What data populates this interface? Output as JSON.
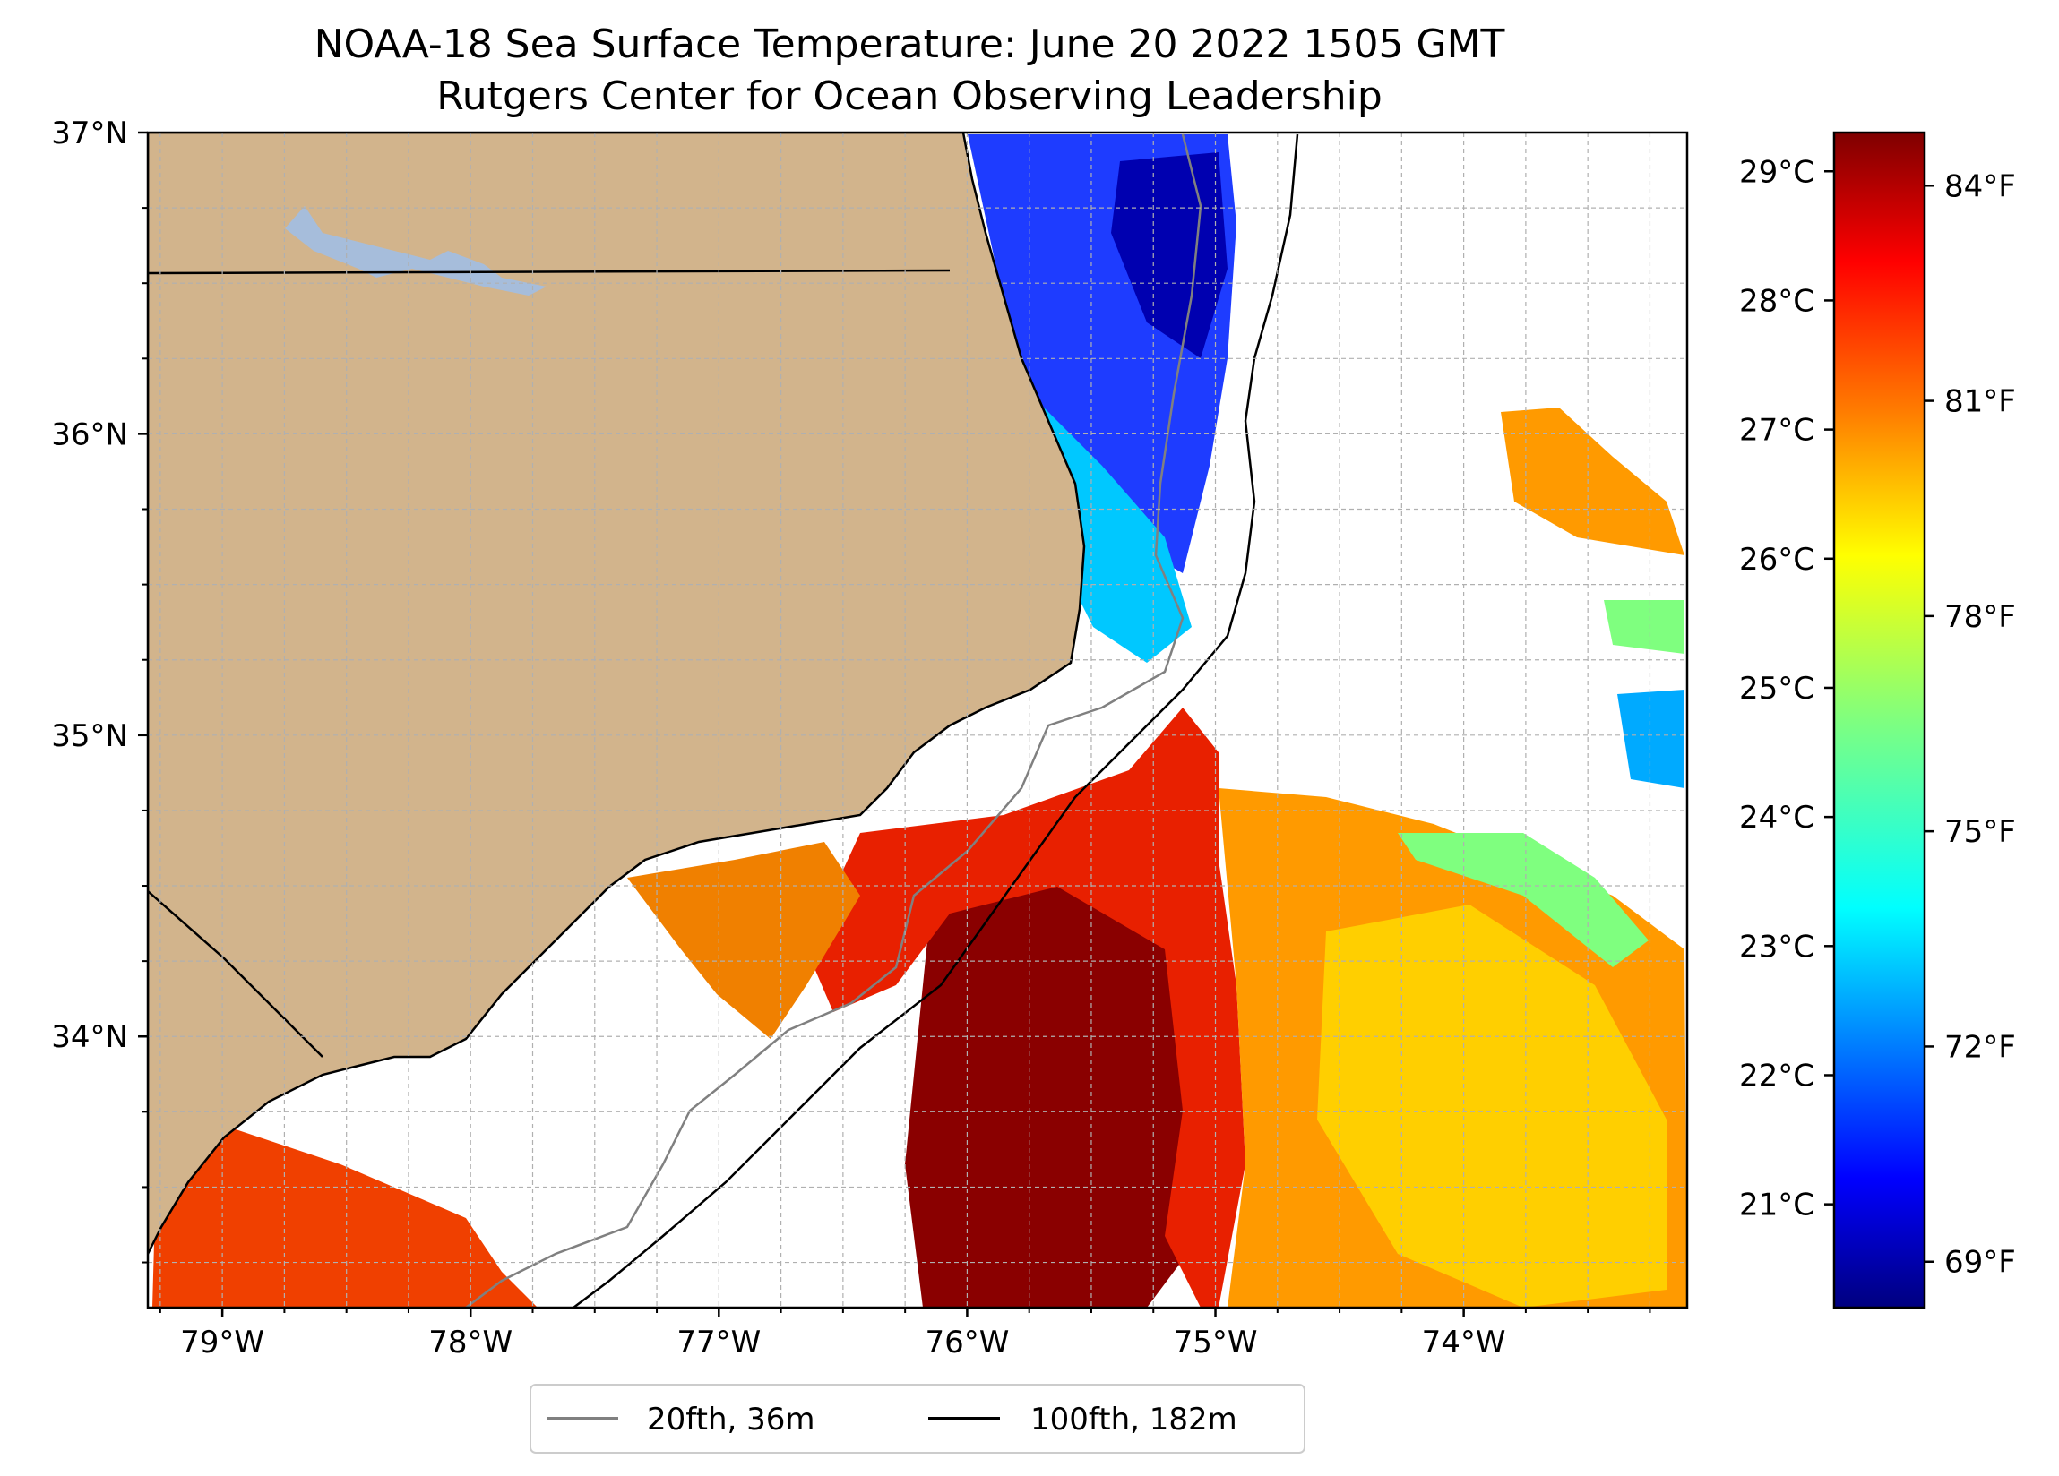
{
  "title": {
    "line1": "NOAA-18 Sea Surface Temperature: June 20 2022 1505 GMT",
    "line2": "Rutgers Center for Ocean Observing Leadership"
  },
  "map": {
    "lon_range": [
      -79.3,
      -73.1
    ],
    "lat_range": [
      33.1,
      37.0
    ],
    "lat_ticks": [
      {
        "value": 37,
        "label": "37°N"
      },
      {
        "value": 36,
        "label": "36°N"
      },
      {
        "value": 35,
        "label": "35°N"
      },
      {
        "value": 34,
        "label": "34°N"
      }
    ],
    "lon_ticks": [
      {
        "value": -79,
        "label": "79°W"
      },
      {
        "value": -78,
        "label": "78°W"
      },
      {
        "value": -77,
        "label": "77°W"
      },
      {
        "value": -76,
        "label": "76°W"
      },
      {
        "value": -75,
        "label": "75°W"
      },
      {
        "value": -74,
        "label": "74°W"
      }
    ],
    "grid": true,
    "land_color": "#d2b48c",
    "lake_color": "#a6bddb",
    "coast_color": "#000000"
  },
  "colorbar": {
    "celsius_ticks": [
      {
        "value": 29,
        "label": "29°C"
      },
      {
        "value": 28,
        "label": "28°C"
      },
      {
        "value": 27,
        "label": "27°C"
      },
      {
        "value": 26,
        "label": "26°C"
      },
      {
        "value": 25,
        "label": "25°C"
      },
      {
        "value": 24,
        "label": "24°C"
      },
      {
        "value": 23,
        "label": "23°C"
      },
      {
        "value": 22,
        "label": "22°C"
      },
      {
        "value": 21,
        "label": "21°C"
      }
    ],
    "fahrenheit_ticks": [
      {
        "value": 84,
        "label": "84°F"
      },
      {
        "value": 81,
        "label": "81°F"
      },
      {
        "value": 78,
        "label": "78°F"
      },
      {
        "value": 75,
        "label": "75°F"
      },
      {
        "value": 72,
        "label": "72°F"
      },
      {
        "value": 69,
        "label": "69°F"
      }
    ],
    "range_c": [
      20.2,
      29.3
    ],
    "colormap": "jet",
    "colors": [
      "#00007f",
      "#0000ff",
      "#007fff",
      "#00ffff",
      "#7fff7f",
      "#ffff00",
      "#ff7f00",
      "#ff0000",
      "#7f0000"
    ]
  },
  "legend": {
    "items": [
      {
        "label": "20fth, 36m",
        "color": "#808080"
      },
      {
        "label": "100fth, 182m",
        "color": "#000000"
      }
    ]
  }
}
